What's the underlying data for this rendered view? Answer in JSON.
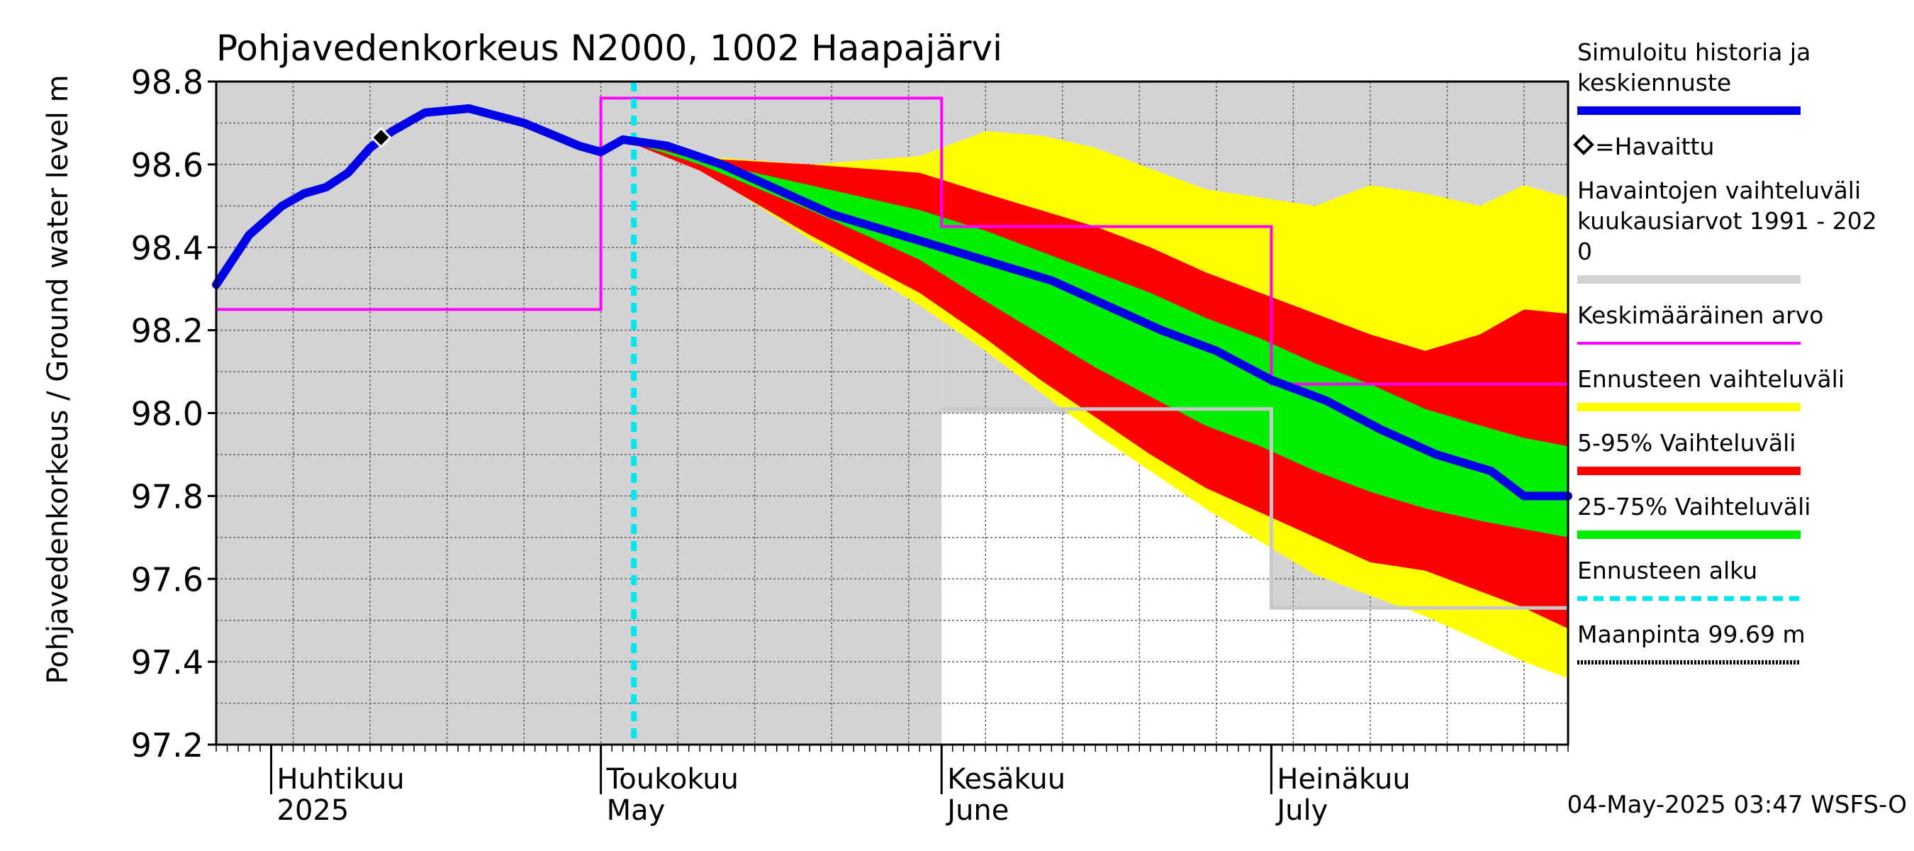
{
  "chart_data": {
    "type": "line",
    "title": "Pohjavedenkorkeus N2000, 1002 Haapajärvi",
    "ylabel": "Pohjavedenkorkeus / Ground water level   m",
    "ylim": [
      97.2,
      98.8
    ],
    "y_ticks": [
      "97.2",
      "97.4",
      "97.6",
      "97.8",
      "98.0",
      "98.2",
      "98.4",
      "98.6",
      "98.8"
    ],
    "xlim": [
      "2025-03-27",
      "2025-07-28"
    ],
    "month_labels": [
      {
        "fi": "Huhtikuu",
        "en": "2025",
        "date": "2025-04-01"
      },
      {
        "fi": "Toukokuu",
        "en": "May",
        "date": "2025-05-01"
      },
      {
        "fi": "Kesäkuu",
        "en": "June",
        "date": "2025-06-01"
      },
      {
        "fi": "Heinäkuu",
        "en": "July",
        "date": "2025-07-01"
      }
    ],
    "forecast_start": "2025-05-04",
    "observed_points": [
      {
        "date": "2025-04-11",
        "value": 98.665
      }
    ],
    "simulated": {
      "x": [
        "2025-03-27",
        "2025-03-30",
        "2025-04-02",
        "2025-04-04",
        "2025-04-06",
        "2025-04-08",
        "2025-04-10",
        "2025-04-12",
        "2025-04-15",
        "2025-04-19",
        "2025-04-24",
        "2025-04-29",
        "2025-05-01",
        "2025-05-03",
        "2025-05-07",
        "2025-05-12",
        "2025-05-17",
        "2025-05-22",
        "2025-05-27",
        "2025-06-01",
        "2025-06-06",
        "2025-06-11",
        "2025-06-16",
        "2025-06-21",
        "2025-06-26",
        "2025-07-01",
        "2025-07-06",
        "2025-07-11",
        "2025-07-16",
        "2025-07-21",
        "2025-07-24",
        "2025-07-28"
      ],
      "y": [
        98.31,
        98.43,
        98.5,
        98.53,
        98.545,
        98.58,
        98.64,
        98.68,
        98.725,
        98.735,
        98.7,
        98.645,
        98.63,
        98.66,
        98.645,
        98.6,
        98.54,
        98.48,
        98.44,
        98.4,
        98.36,
        98.32,
        98.26,
        98.2,
        98.15,
        98.08,
        98.03,
        97.96,
        97.9,
        97.86,
        97.8,
        97.8
      ]
    },
    "bands": {
      "forecast_range": {
        "x": [
          "2025-05-03",
          "2025-05-10",
          "2025-05-20",
          "2025-05-30",
          "2025-06-05",
          "2025-06-10",
          "2025-06-15",
          "2025-06-20",
          "2025-06-25",
          "2025-06-30",
          "2025-07-05",
          "2025-07-10",
          "2025-07-15",
          "2025-07-20",
          "2025-07-24",
          "2025-07-28"
        ],
        "upper": [
          98.66,
          98.62,
          98.6,
          98.62,
          98.68,
          98.67,
          98.64,
          98.59,
          98.54,
          98.52,
          98.5,
          98.55,
          98.53,
          98.5,
          98.55,
          98.52
        ],
        "lower": [
          98.66,
          98.59,
          98.42,
          98.26,
          98.15,
          98.05,
          97.95,
          97.86,
          97.77,
          97.69,
          97.61,
          97.56,
          97.51,
          97.45,
          97.4,
          97.36
        ]
      },
      "p5_95": {
        "x": [
          "2025-05-03",
          "2025-05-10",
          "2025-05-20",
          "2025-05-30",
          "2025-06-05",
          "2025-06-10",
          "2025-06-15",
          "2025-06-20",
          "2025-06-25",
          "2025-06-30",
          "2025-07-05",
          "2025-07-10",
          "2025-07-15",
          "2025-07-20",
          "2025-07-24",
          "2025-07-28"
        ],
        "upper": [
          98.66,
          98.615,
          98.6,
          98.58,
          98.53,
          98.49,
          98.45,
          98.4,
          98.34,
          98.29,
          98.24,
          98.19,
          98.15,
          98.19,
          98.25,
          98.24
        ],
        "lower": [
          98.66,
          98.585,
          98.43,
          98.29,
          98.18,
          98.08,
          97.99,
          97.9,
          97.82,
          97.76,
          97.7,
          97.64,
          97.62,
          97.57,
          97.53,
          97.48
        ]
      },
      "p25_75": {
        "x": [
          "2025-05-03",
          "2025-05-10",
          "2025-05-20",
          "2025-05-30",
          "2025-06-05",
          "2025-06-10",
          "2025-06-15",
          "2025-06-20",
          "2025-06-25",
          "2025-06-30",
          "2025-07-05",
          "2025-07-10",
          "2025-07-15",
          "2025-07-20",
          "2025-07-24",
          "2025-07-28"
        ],
        "upper": [
          98.66,
          98.61,
          98.55,
          98.49,
          98.44,
          98.39,
          98.34,
          98.29,
          98.23,
          98.18,
          98.12,
          98.07,
          98.01,
          97.97,
          97.94,
          97.92
        ],
        "lower": [
          98.66,
          98.6,
          98.49,
          98.37,
          98.27,
          98.19,
          98.11,
          98.04,
          97.97,
          97.92,
          97.86,
          97.81,
          97.77,
          97.74,
          97.72,
          97.7
        ]
      }
    },
    "observation_range_monthly": [
      {
        "from": "2025-03-27",
        "to": "2025-05-31",
        "max": 98.8,
        "min": 97.2
      },
      {
        "from": "2025-06-01",
        "to": "2025-06-30",
        "max": 98.8,
        "min": 98.0
      },
      {
        "from": "2025-07-01",
        "to": "2025-07-28",
        "max": 98.8,
        "min": 97.53
      }
    ],
    "mean_monthly": [
      {
        "from": "2025-03-27",
        "to": "2025-04-30",
        "value": 98.25
      },
      {
        "from": "2025-05-01",
        "to": "2025-05-31",
        "value": 98.76
      },
      {
        "from": "2025-06-01",
        "to": "2025-06-30",
        "value": 98.45
      },
      {
        "from": "2025-07-01",
        "to": "2025-07-28",
        "value": 98.07
      }
    ],
    "min_monthly_line": [
      {
        "from": "2025-06-01",
        "to": "2025-06-30",
        "value": 98.01
      },
      {
        "from": "2025-07-01",
        "to": "2025-07-28",
        "value": 97.53
      }
    ],
    "legend": [
      {
        "text": "Simuloitu historia ja\nkeskiennuste",
        "color": "#0000e6",
        "style": "line-thick"
      },
      {
        "text": "=Havaittu",
        "color": "#000000",
        "style": "diamond"
      },
      {
        "text": "Havaintojen vaihteluväli\n kuukausiarvot 1991 - 202\n0",
        "color": "#d3d3d3",
        "style": "line-thick"
      },
      {
        "text": "Keskimääräinen arvo",
        "color": "#ff00ff",
        "style": "line-thin"
      },
      {
        "text": "Ennusteen vaihteluväli",
        "color": "#ffff00",
        "style": "line-thick"
      },
      {
        "text": "5-95% Vaihteluväli",
        "color": "#ff0000",
        "style": "line-thick"
      },
      {
        "text": "25-75% Vaihteluväli",
        "color": "#00ee00",
        "style": "line-thick"
      },
      {
        "text": "Ennusteen alku",
        "color": "#00e5ee",
        "style": "dashed"
      },
      {
        "text": "Maanpinta 99.69 m",
        "color": "#000000",
        "style": "dotted"
      }
    ],
    "colors": {
      "simulated": "#0000e6",
      "forecast_range": "#ffff00",
      "p5_95": "#ff0000",
      "p25_75": "#00ee00",
      "mean": "#ff00ff",
      "obs_range": "#d3d3d3",
      "min_line": "#c8c8c8",
      "forecast_start": "#00e5ee"
    },
    "legend_placement": "right",
    "grid": true,
    "timestamp": "04-May-2025 03:47 WSFS-O"
  }
}
